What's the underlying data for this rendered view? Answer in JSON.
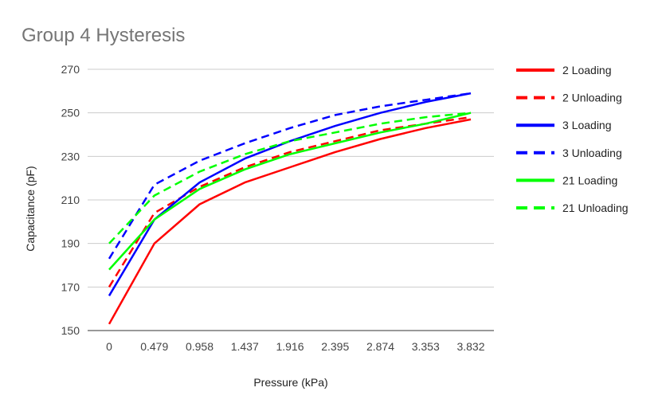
{
  "chart_data": {
    "type": "line",
    "title": "Group 4 Hysteresis",
    "xlabel": "Pressure (kPa)",
    "ylabel": "Capacitance (pF)",
    "categories": [
      "0",
      "0.479",
      "0.958",
      "1.437",
      "1.916",
      "2.395",
      "2.874",
      "3.353",
      "3.832"
    ],
    "ylim": [
      150,
      270
    ],
    "yticks": [
      150,
      170,
      190,
      210,
      230,
      250,
      270
    ],
    "grid": true,
    "legend_position": "right",
    "series": [
      {
        "name": "2 Loading",
        "color": "#ff0000",
        "style": "solid",
        "values": [
          153,
          190,
          208,
          218,
          225,
          232,
          238,
          243,
          247
        ]
      },
      {
        "name": "2 Unloading",
        "color": "#ff0000",
        "style": "dashed",
        "values": [
          170,
          204,
          216,
          225,
          232,
          237,
          242,
          245,
          248
        ]
      },
      {
        "name": "3 Loading",
        "color": "#0000ff",
        "style": "solid",
        "values": [
          166,
          201,
          218,
          229,
          237,
          244,
          250,
          255,
          259
        ]
      },
      {
        "name": "3 Unloading",
        "color": "#0000ff",
        "style": "dashed",
        "values": [
          183,
          217,
          228,
          236,
          243,
          249,
          253,
          256,
          259
        ]
      },
      {
        "name": "21 Loading",
        "color": "#00ff00",
        "style": "solid",
        "values": [
          178,
          201,
          215,
          224,
          231,
          236,
          241,
          245,
          250
        ]
      },
      {
        "name": "21 Unloading",
        "color": "#00ff00",
        "style": "dashed",
        "values": [
          190,
          212,
          223,
          231,
          237,
          241,
          245,
          248,
          250
        ]
      }
    ]
  }
}
